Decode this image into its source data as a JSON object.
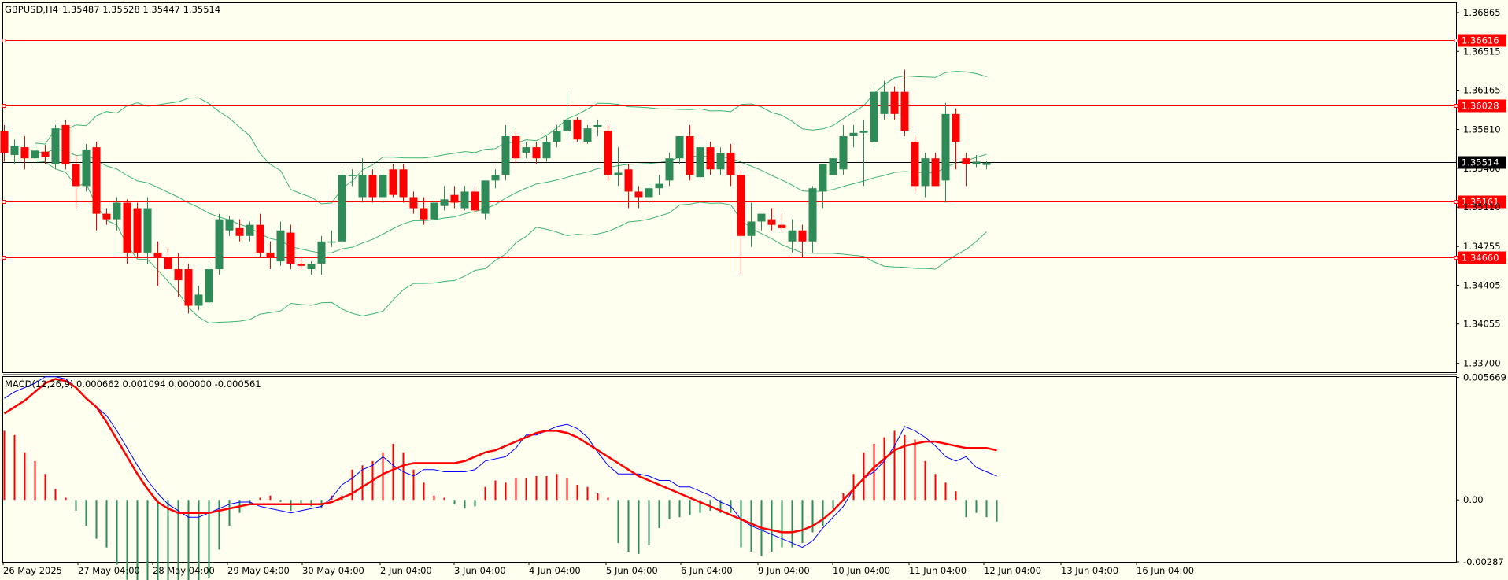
{
  "header": {
    "symbol": "GBPUSD,H4",
    "ohlc": "1.35487 1.35528 1.35447 1.35514"
  },
  "macd_header": "MACD(12,26,9) 0.000662 0.001094 0.000000 -0.000561",
  "colors": {
    "background": "#fffff0",
    "bull": "#2e8b57",
    "bear": "#ff0000",
    "bands": "#3cb371",
    "level": "#ff0000",
    "price_line": "#000000",
    "macd_line": "#0000ff",
    "signal_line": "#ff0000"
  },
  "chart_data": [
    {
      "type": "candlestick",
      "title": "GBPUSD,H4",
      "ylim": [
        1.3362,
        1.3695
      ],
      "y_ticks": [
        "1.36865",
        "1.36515",
        "1.36165",
        "1.35810",
        "1.35460",
        "1.35110",
        "1.34755",
        "1.34405",
        "1.34055",
        "1.33700"
      ],
      "x_labels": [
        "26 May 2025",
        "27 May 04:00",
        "28 May 04:00",
        "29 May 04:00",
        "30 May 04:00",
        "2 Jun 04:00",
        "3 Jun 04:00",
        "4 Jun 04:00",
        "5 Jun 04:00",
        "6 Jun 04:00",
        "9 Jun 04:00",
        "10 Jun 04:00",
        "11 Jun 04:00",
        "12 Jun 04:00",
        "13 Jun 04:00",
        "16 Jun 04:00"
      ],
      "levels": [
        {
          "label": "1.36616",
          "value": 1.36616
        },
        {
          "label": "1.36028",
          "value": 1.36028
        },
        {
          "label": "1.35161",
          "value": 1.35161
        },
        {
          "label": "1.34660",
          "value": 1.3466
        }
      ],
      "current_price": {
        "label": "1.35514",
        "value": 1.35514
      },
      "candles": [
        [
          1.358,
          1.3585,
          1.3552,
          1.356
        ],
        [
          1.3558,
          1.3572,
          1.355,
          1.3566
        ],
        [
          1.3565,
          1.3575,
          1.3545,
          1.3555
        ],
        [
          1.3555,
          1.3565,
          1.3548,
          1.3562
        ],
        [
          1.3561,
          1.3567,
          1.355,
          1.3556
        ],
        [
          1.355,
          1.3585,
          1.3545,
          1.3582
        ],
        [
          1.3585,
          1.359,
          1.3545,
          1.355
        ],
        [
          1.355,
          1.3558,
          1.351,
          1.353
        ],
        [
          1.353,
          1.3568,
          1.3525,
          1.3563
        ],
        [
          1.3565,
          1.357,
          1.349,
          1.3505
        ],
        [
          1.3505,
          1.351,
          1.3495,
          1.35
        ],
        [
          1.35,
          1.352,
          1.349,
          1.3515
        ],
        [
          1.3515,
          1.3518,
          1.346,
          1.347
        ],
        [
          1.351,
          1.3515,
          1.3465,
          1.347
        ],
        [
          1.347,
          1.352,
          1.346,
          1.351
        ],
        [
          1.347,
          1.348,
          1.344,
          1.3465
        ],
        [
          1.3465,
          1.3475,
          1.3455,
          1.3455
        ],
        [
          1.3455,
          1.347,
          1.343,
          1.3445
        ],
        [
          1.3455,
          1.346,
          1.3415,
          1.3422
        ],
        [
          1.3422,
          1.344,
          1.3418,
          1.3432
        ],
        [
          1.3425,
          1.346,
          1.342,
          1.3455
        ],
        [
          1.3455,
          1.3505,
          1.345,
          1.35
        ],
        [
          1.349,
          1.3503,
          1.3485,
          1.35
        ],
        [
          1.3492,
          1.35,
          1.348,
          1.3485
        ],
        [
          1.3485,
          1.3498,
          1.348,
          1.3495
        ],
        [
          1.3495,
          1.3505,
          1.3465,
          1.347
        ],
        [
          1.347,
          1.348,
          1.3455,
          1.3465
        ],
        [
          1.3462,
          1.3498,
          1.3458,
          1.349
        ],
        [
          1.3488,
          1.3495,
          1.3455,
          1.346
        ],
        [
          1.346,
          1.3465,
          1.3455,
          1.3458
        ],
        [
          1.3455,
          1.3462,
          1.345,
          1.346
        ],
        [
          1.346,
          1.3485,
          1.345,
          1.348
        ],
        [
          1.348,
          1.349,
          1.3475,
          1.348
        ],
        [
          1.348,
          1.3545,
          1.3475,
          1.354
        ],
        [
          1.354,
          1.3545,
          1.353,
          1.354
        ],
        [
          1.352,
          1.3555,
          1.3515,
          1.354
        ],
        [
          1.354,
          1.3545,
          1.3515,
          1.352
        ],
        [
          1.352,
          1.3545,
          1.3515,
          1.354
        ],
        [
          1.3545,
          1.355,
          1.352,
          1.3522
        ],
        [
          1.3545,
          1.355,
          1.3515,
          1.352
        ],
        [
          1.352,
          1.3525,
          1.3505,
          1.351
        ],
        [
          1.351,
          1.352,
          1.3495,
          1.35
        ],
        [
          1.35,
          1.352,
          1.3495,
          1.3515
        ],
        [
          1.3512,
          1.353,
          1.3508,
          1.3518
        ],
        [
          1.3522,
          1.353,
          1.351,
          1.3515
        ],
        [
          1.351,
          1.353,
          1.3508,
          1.3525
        ],
        [
          1.3525,
          1.353,
          1.3505,
          1.3508
        ],
        [
          1.3505,
          1.3535,
          1.35,
          1.3535
        ],
        [
          1.3535,
          1.3545,
          1.3528,
          1.354
        ],
        [
          1.354,
          1.3585,
          1.3535,
          1.3575
        ],
        [
          1.3575,
          1.358,
          1.355,
          1.3555
        ],
        [
          1.356,
          1.357,
          1.3555,
          1.3565
        ],
        [
          1.3565,
          1.357,
          1.355,
          1.3555
        ],
        [
          1.3555,
          1.3575,
          1.3552,
          1.357
        ],
        [
          1.357,
          1.3585,
          1.3565,
          1.358
        ],
        [
          1.358,
          1.3615,
          1.3575,
          1.359
        ],
        [
          1.359,
          1.3592,
          1.357,
          1.3572
        ],
        [
          1.357,
          1.3585,
          1.3568,
          1.3582
        ],
        [
          1.3583,
          1.359,
          1.3575,
          1.3585
        ],
        [
          1.358,
          1.3585,
          1.3535,
          1.354
        ],
        [
          1.354,
          1.3565,
          1.353,
          1.3542
        ],
        [
          1.3545,
          1.355,
          1.351,
          1.3525
        ],
        [
          1.3525,
          1.353,
          1.351,
          1.352
        ],
        [
          1.352,
          1.3532,
          1.3515,
          1.3528
        ],
        [
          1.3528,
          1.354,
          1.3522,
          1.3532
        ],
        [
          1.3535,
          1.356,
          1.353,
          1.3555
        ],
        [
          1.3555,
          1.3575,
          1.355,
          1.3575
        ],
        [
          1.3575,
          1.3585,
          1.3535,
          1.354
        ],
        [
          1.3538,
          1.3565,
          1.3535,
          1.3565
        ],
        [
          1.3565,
          1.357,
          1.354,
          1.3545
        ],
        [
          1.3545,
          1.3565,
          1.354,
          1.356
        ],
        [
          1.356,
          1.3568,
          1.353,
          1.354
        ],
        [
          1.354,
          1.3545,
          1.345,
          1.3485
        ],
        [
          1.3485,
          1.3515,
          1.3475,
          1.3498
        ],
        [
          1.3498,
          1.3505,
          1.349,
          1.3505
        ],
        [
          1.35,
          1.351,
          1.349,
          1.3495
        ],
        [
          1.3495,
          1.3505,
          1.349,
          1.3492
        ],
        [
          1.348,
          1.35,
          1.347,
          1.349
        ],
        [
          1.349,
          1.3495,
          1.3465,
          1.348
        ],
        [
          1.348,
          1.353,
          1.347,
          1.3528
        ],
        [
          1.3525,
          1.355,
          1.351,
          1.355
        ],
        [
          1.354,
          1.356,
          1.3535,
          1.3555
        ],
        [
          1.3545,
          1.3585,
          1.354,
          1.3575
        ],
        [
          1.3575,
          1.3585,
          1.3565,
          1.3578
        ],
        [
          1.3578,
          1.359,
          1.353,
          1.358
        ],
        [
          1.357,
          1.362,
          1.3565,
          1.3615
        ],
        [
          1.3595,
          1.3625,
          1.359,
          1.3615
        ],
        [
          1.3615,
          1.362,
          1.359,
          1.3595
        ],
        [
          1.3615,
          1.3635,
          1.3575,
          1.358
        ],
        [
          1.357,
          1.3575,
          1.3525,
          1.353
        ],
        [
          1.353,
          1.356,
          1.352,
          1.3555
        ],
        [
          1.3555,
          1.356,
          1.353,
          1.353
        ],
        [
          1.3535,
          1.3605,
          1.3515,
          1.3595
        ],
        [
          1.3595,
          1.36,
          1.3545,
          1.357
        ],
        [
          1.3555,
          1.356,
          1.353,
          1.355
        ],
        [
          1.355,
          1.3558,
          1.3547,
          1.3552
        ],
        [
          1.3549,
          1.3553,
          1.3545,
          1.3551
        ]
      ]
    },
    {
      "type": "line",
      "title": "MACD(12,26,9)",
      "ylim": [
        -0.00287,
        0.00569
      ],
      "y_ticks": [
        "0.005669",
        "0.00",
        "-0.00287"
      ],
      "histogram": [
        0.0032,
        0.003,
        0.0022,
        0.0018,
        0.0012,
        0.0005,
        0.0001,
        -0.0005,
        -0.0012,
        -0.0018,
        -0.0022,
        -0.003,
        -0.0037,
        -0.0042,
        -0.0045,
        -0.0046,
        -0.0042,
        -0.0046,
        -0.005,
        -0.0048,
        -0.0036,
        -0.0023,
        -0.0012,
        -0.0006,
        -0.0002,
        0.0001,
        0.0002,
        -0.0001,
        -0.0005,
        -0.0002,
        -0.0003,
        -0.0004,
        0.0002,
        0.0002,
        0.0014,
        0.0016,
        0.0018,
        0.0022,
        0.0026,
        0.0022,
        0.0014,
        0.0008,
        0.0002,
        0.0001,
        -0.0002,
        -0.0004,
        -0.0003,
        0.0006,
        0.0009,
        0.0008,
        0.001,
        0.001,
        0.0011,
        0.0011,
        0.0012,
        0.001,
        0.0007,
        0.0006,
        0.0003,
        0.0001,
        -0.002,
        -0.0024,
        -0.0025,
        -0.0021,
        -0.0013,
        -0.0009,
        -0.0008,
        -0.0007,
        -0.0006,
        -0.0005,
        -0.0006,
        -0.0006,
        -0.0022,
        -0.0024,
        -0.0026,
        -0.0024,
        -0.0022,
        -0.0022,
        -0.002,
        -0.0015,
        -0.0012,
        -0.0004,
        0.0003,
        0.0012,
        0.0022,
        0.0026,
        0.0029,
        0.0032,
        0.003,
        0.0028,
        0.0018,
        0.0012,
        0.0008,
        0.0004,
        -0.0008,
        -0.0006,
        -0.0008,
        -0.001
      ],
      "series": [
        {
          "values": [
            0.0047,
            0.005,
            0.0052,
            0.0054,
            0.0057,
            0.0057,
            0.0056,
            0.0052,
            0.0047,
            0.0043,
            0.0039,
            0.0032,
            0.0024,
            0.0016,
            0.0009,
            0.0003,
            -0.0002,
            -0.0005,
            -0.0008,
            -0.0008,
            -0.0006,
            -0.0004,
            -0.0002,
            -0.0001,
            -0.0001,
            -0.0003,
            -0.0004,
            -0.0005,
            -0.0006,
            -0.0005,
            -0.0004,
            -0.0003,
            0.0001,
            0.0007,
            0.001,
            0.0014,
            0.0016,
            0.002,
            0.0016,
            0.0013,
            0.0011,
            0.0014,
            0.0014,
            0.0013,
            0.0013,
            0.0013,
            0.0014,
            0.0018,
            0.0019,
            0.002,
            0.0024,
            0.003,
            0.003,
            0.0032,
            0.0034,
            0.0035,
            0.0033,
            0.0029,
            0.0022,
            0.0016,
            0.0012,
            0.0012,
            0.0012,
            0.0011,
            0.0009,
            0.0009,
            0.0006,
            0.0006,
            0.0004,
            0.0002,
            -0.0001,
            -0.0003,
            -0.0009,
            -0.0012,
            -0.0014,
            -0.0016,
            -0.0018,
            -0.002,
            -0.0022,
            -0.0019,
            -0.0013,
            -0.0008,
            -0.0003,
            0.0005,
            0.001,
            0.0013,
            0.0018,
            0.0025,
            0.0034,
            0.0032,
            0.0029,
            0.0025,
            0.002,
            0.0018,
            0.002,
            0.0015,
            0.0013,
            0.0011
          ]
        },
        {
          "values": [
            0.004,
            0.0043,
            0.0046,
            0.005,
            0.0054,
            0.0056,
            0.0055,
            0.0052,
            0.0047,
            0.0043,
            0.0036,
            0.0028,
            0.002,
            0.0012,
            0.0005,
            -0.0001,
            -0.0004,
            -0.0006,
            -0.0006,
            -0.0006,
            -0.0006,
            -0.0005,
            -0.0004,
            -0.0003,
            -0.0002,
            -0.0002,
            -0.0002,
            -0.0002,
            -0.0002,
            -0.0002,
            -0.0002,
            -0.0002,
            -0.0001,
            0.0001,
            0.0003,
            0.0006,
            0.0009,
            0.0012,
            0.0014,
            0.0016,
            0.0017,
            0.0017,
            0.0017,
            0.0017,
            0.0017,
            0.0018,
            0.002,
            0.0022,
            0.0023,
            0.0025,
            0.0027,
            0.0029,
            0.0031,
            0.0032,
            0.0032,
            0.0031,
            0.0029,
            0.0026,
            0.0023,
            0.002,
            0.0017,
            0.0014,
            0.0011,
            0.0009,
            0.0007,
            0.0005,
            0.0003,
            0.0001,
            -0.0001,
            -0.0003,
            -0.0005,
            -0.0007,
            -0.0009,
            -0.0011,
            -0.0013,
            -0.0014,
            -0.0015,
            -0.0015,
            -0.0014,
            -0.0012,
            -0.0009,
            -0.0005,
            0.0,
            0.0005,
            0.001,
            0.0015,
            0.0019,
            0.0023,
            0.0025,
            0.0026,
            0.0027,
            0.0027,
            0.0026,
            0.0025,
            0.0024,
            0.0024,
            0.0024,
            0.0023
          ]
        }
      ]
    }
  ]
}
